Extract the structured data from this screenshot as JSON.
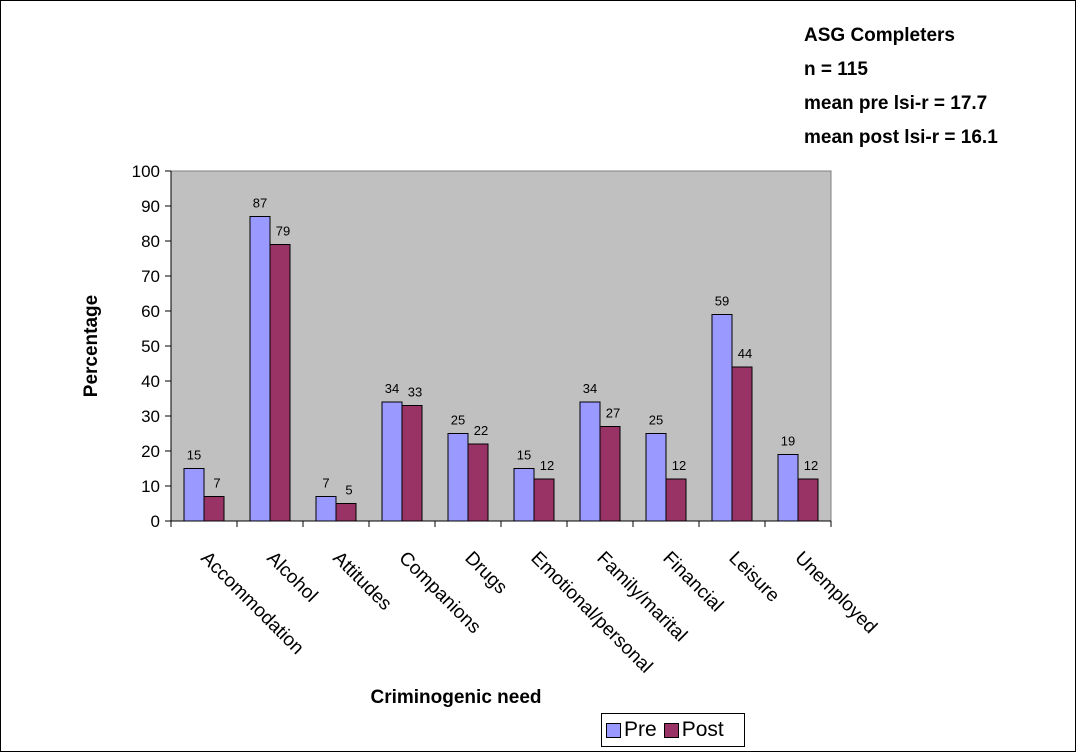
{
  "annotations": [
    "ASG Completers",
    "n = 115",
    "mean pre lsi-r = 17.7",
    "mean post lsi-r  = 16.1"
  ],
  "chart_data": {
    "type": "bar",
    "title": "",
    "xlabel": "Criminogenic need",
    "ylabel": "Percentage",
    "ylim": [
      0,
      100
    ],
    "yticks": [
      0,
      10,
      20,
      30,
      40,
      50,
      60,
      70,
      80,
      90,
      100
    ],
    "categories": [
      "Accommodation",
      "Alcohol",
      "Attitudes",
      "Companions",
      "Drugs",
      "Emotional/personal",
      "Family/marital",
      "Financial",
      "Leisure",
      "Unemployed"
    ],
    "series": [
      {
        "name": "Pre",
        "values": [
          15,
          87,
          7,
          34,
          25,
          15,
          34,
          25,
          59,
          19
        ],
        "color": "#9999ff"
      },
      {
        "name": "Post",
        "values": [
          7,
          79,
          5,
          33,
          22,
          12,
          27,
          12,
          44,
          12
        ],
        "color": "#993366"
      }
    ],
    "plot_background": "#c0c0c0",
    "grid": false,
    "legend_position": "bottom-center"
  }
}
